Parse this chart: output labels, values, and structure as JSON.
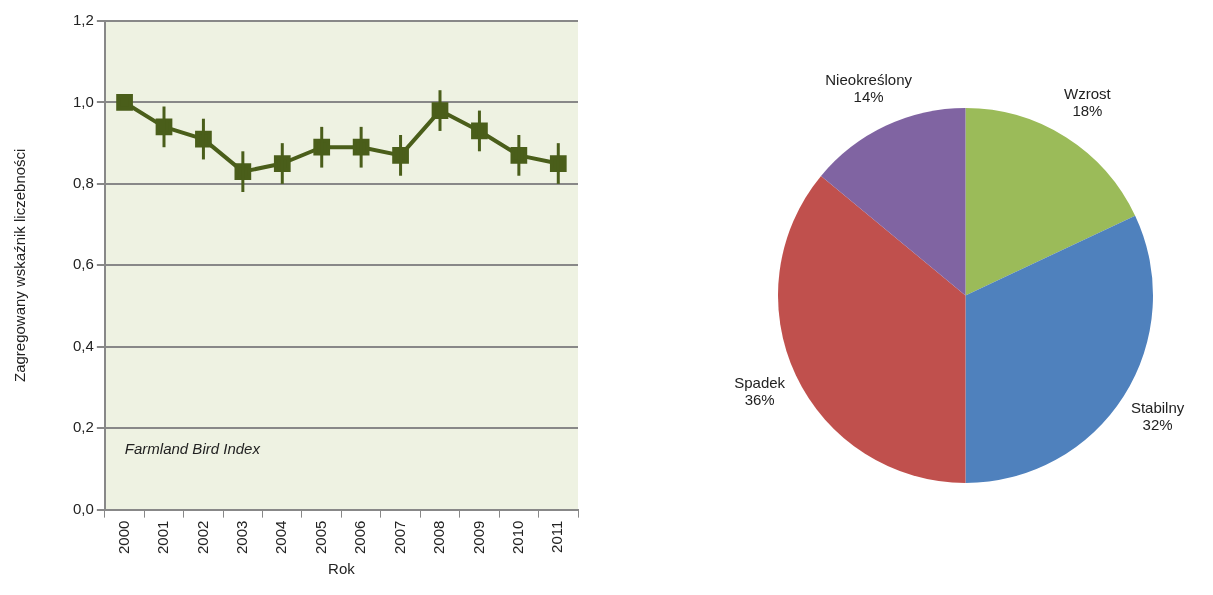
{
  "chart_data": [
    {
      "type": "line",
      "ylabel": "Zagregowany wskaźnik liczebności",
      "xlabel": "Rok",
      "categories": [
        "2000",
        "2001",
        "2002",
        "2003",
        "2004",
        "2005",
        "2006",
        "2007",
        "2008",
        "2009",
        "2010",
        "2011"
      ],
      "values": [
        1.0,
        0.94,
        0.91,
        0.83,
        0.85,
        0.89,
        0.89,
        0.87,
        0.98,
        0.93,
        0.87,
        0.85
      ],
      "errors": [
        null,
        0.05,
        0.05,
        0.05,
        0.05,
        0.05,
        0.05,
        0.05,
        0.05,
        0.05,
        0.05,
        0.05
      ],
      "color": "#4a5e1a",
      "marker": "square",
      "line_style": "solid",
      "grid": "y",
      "legend": false,
      "ylim": [
        0,
        1.2
      ],
      "yticks": [
        {
          "value": 0,
          "label": "0,0"
        },
        {
          "value": 0.2,
          "label": "0,2"
        },
        {
          "value": 0.4,
          "label": "0,4"
        },
        {
          "value": 0.6,
          "label": "0,6"
        },
        {
          "value": 0.8,
          "label": "0,8"
        },
        {
          "value": 1.0,
          "label": "1,0"
        },
        {
          "value": 1.2,
          "label": "1,2"
        }
      ],
      "annotations": [
        "Farmland Bird Index"
      ]
    },
    {
      "type": "pie",
      "categories": [
        "Wzrost",
        "Stabilny",
        "Spadek",
        "Nieokreślony"
      ],
      "values": [
        18,
        32,
        36,
        14
      ],
      "value_labels": [
        "18%",
        "32%",
        "36%",
        "14%"
      ],
      "colors": [
        "#9bbb59",
        "#4f81bd",
        "#c0504d",
        "#8064a2"
      ],
      "legend": false
    }
  ]
}
